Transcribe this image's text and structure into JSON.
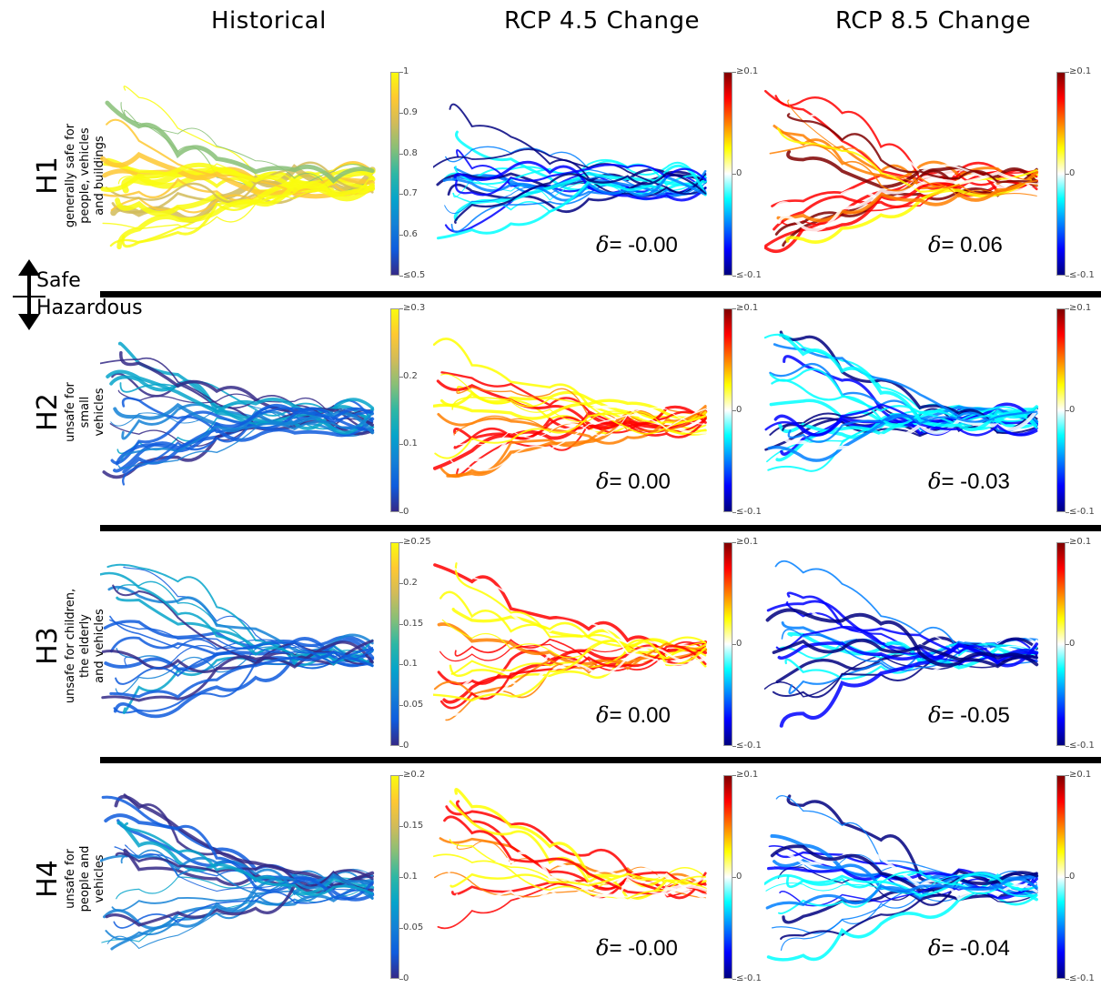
{
  "columns": [
    "Historical",
    "RCP 4.5 Change",
    "RCP 8.5 Change"
  ],
  "rows": [
    {
      "code": "H1",
      "desc": "generally safe for\npeople, vehicles\nand buildings",
      "hist_ticks": [
        "1",
        "0.9",
        "0.8",
        "0.7",
        "0.6",
        "≤0.5"
      ],
      "delta45": "= -0.00",
      "delta85": "= 0.06"
    },
    {
      "code": "H2",
      "desc": "unsafe for\nsmall\nvehicles",
      "hist_ticks": [
        "≥0.3",
        "0.2",
        "0.1",
        "0"
      ],
      "delta45": "= 0.00",
      "delta85": "= -0.03"
    },
    {
      "code": "H3",
      "desc": "unsafe for children,\nthe elderly\nand vehicles",
      "hist_ticks": [
        "≥0.25",
        "0.2",
        "0.15",
        "0.1",
        "0.05",
        "0"
      ],
      "delta45": "= 0.00",
      "delta85": "= -0.05"
    },
    {
      "code": "H4",
      "desc": "unsafe for\npeople and\nvehicles",
      "hist_ticks": [
        "≥0.2",
        "0.15",
        "0.1",
        "0.05",
        "0"
      ],
      "delta45": "= -0.00",
      "delta85": "= -0.04"
    }
  ],
  "change_ticks": [
    "≥0.1",
    "0",
    "≤-0.1"
  ],
  "delta_symbol": "δ",
  "safe_label": "Safe",
  "hazardous_label": "Hazardous",
  "colors": {
    "parula": [
      "#352a87",
      "#0f5cdd",
      "#1481d6",
      "#06a4ca",
      "#2eb7a4",
      "#87bf77",
      "#d1bb59",
      "#fec832",
      "#f9fb0e"
    ],
    "jet": [
      "#00007f",
      "#0000ff",
      "#007fff",
      "#00ffff",
      "#ffffff",
      "#ffff00",
      "#ff7f00",
      "#ff0000",
      "#7f0000"
    ]
  }
}
